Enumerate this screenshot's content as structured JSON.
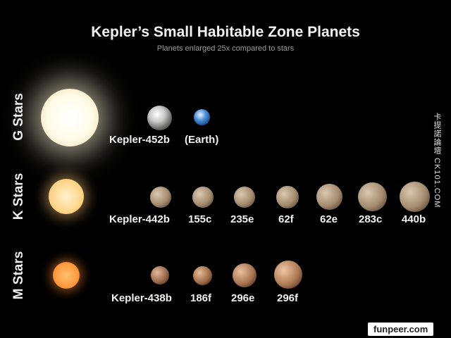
{
  "header": {
    "title": "Kepler’s Small Habitable Zone Planets",
    "subtitle": "Planets enlarged 25x compared to stars"
  },
  "rows": {
    "g": {
      "label": "G Stars",
      "planets": [
        "Kepler-452b",
        "(Earth)"
      ]
    },
    "k": {
      "label": "K Stars",
      "planets": [
        "Kepler-442b",
        "155c",
        "235e",
        "62f",
        "62e",
        "283c",
        "440b"
      ]
    },
    "m": {
      "label": "M Stars",
      "planets": [
        "Kepler-438b",
        "186f",
        "296e",
        "296f"
      ]
    }
  },
  "side_text": "卡提諾論壇 CK101.COM",
  "badge": "funpeer.com",
  "colors": {
    "g_star": "#fffbe8",
    "k_star": "#ffd58a",
    "m_star": "#ff9a3c",
    "k_planet": "#d8c4a4",
    "m_planet": "#b8825a"
  }
}
